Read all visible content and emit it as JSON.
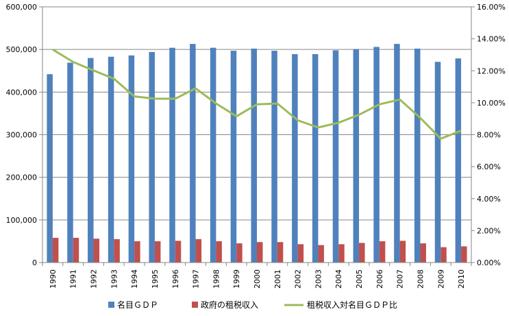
{
  "chart_data": {
    "type": "bar",
    "categories": [
      "1990",
      "1991",
      "1992",
      "1993",
      "1994",
      "1995",
      "1996",
      "1997",
      "1998",
      "1999",
      "2000",
      "2001",
      "2002",
      "2003",
      "2004",
      "2005",
      "2006",
      "2007",
      "2008",
      "2009",
      "2010"
    ],
    "series": [
      {
        "name": "名目ＧＤＰ",
        "kind": "bar",
        "axis": "left",
        "color": "#4f81bd",
        "values": [
          442000,
          469000,
          480000,
          483000,
          486000,
          494000,
          504000,
          513000,
          504000,
          497000,
          502000,
          497000,
          489000,
          489000,
          498000,
          501000,
          506000,
          513000,
          502000,
          471000,
          479000
        ]
      },
      {
        "name": "政府の租税収入",
        "kind": "bar",
        "axis": "left",
        "color": "#c0504d",
        "values": [
          58000,
          58000,
          56000,
          55000,
          50000,
          50000,
          51000,
          55000,
          50000,
          45000,
          48000,
          48000,
          43000,
          41000,
          43000,
          46000,
          50000,
          51000,
          45000,
          36000,
          38000
        ]
      },
      {
        "name": "租税収入対名目ＧＤＰ比",
        "kind": "line",
        "axis": "right",
        "color": "#9bbb59",
        "values": [
          0.1333,
          0.1255,
          0.1202,
          0.115,
          0.104,
          0.1025,
          0.1025,
          0.109,
          0.0995,
          0.0915,
          0.099,
          0.0995,
          0.089,
          0.0845,
          0.0875,
          0.0925,
          0.099,
          0.102,
          0.0905,
          0.0775,
          0.0825
        ]
      }
    ],
    "y_left": {
      "ylim": [
        0,
        600000
      ],
      "ticks": [
        "0",
        "100,000",
        "200,000",
        "300,000",
        "400,000",
        "500,000",
        "600,000"
      ]
    },
    "y_right": {
      "ylim": [
        0,
        0.16
      ],
      "ticks": [
        "0.00%",
        "2.00%",
        "4.00%",
        "6.00%",
        "8.00%",
        "10.00%",
        "12.00%",
        "14.00%",
        "16.00%"
      ]
    },
    "grid": true,
    "legend": "bottom"
  }
}
